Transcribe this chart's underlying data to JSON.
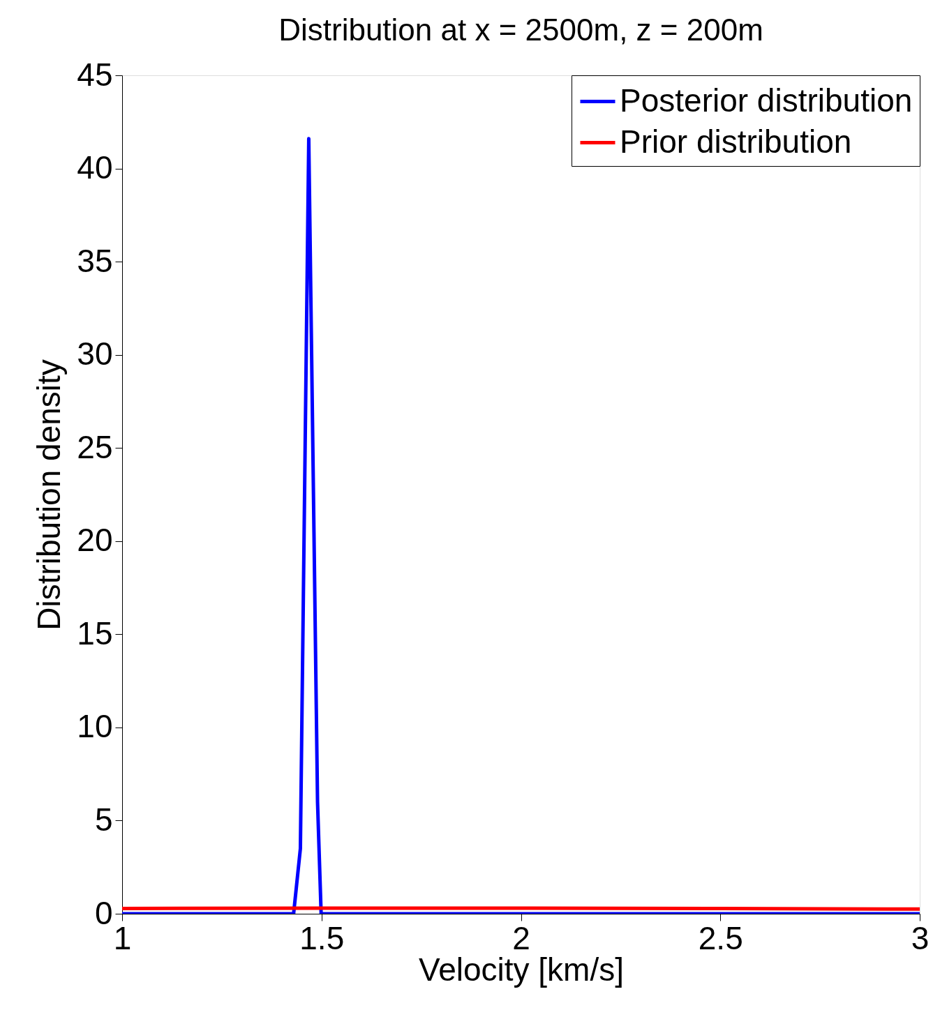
{
  "chart_data": {
    "type": "line",
    "title": "Distribution at x = 2500m, z = 200m",
    "xlabel": "Velocity [km/s]",
    "ylabel": "Distribution density",
    "xlim": [
      1,
      3
    ],
    "xticks": [
      1,
      1.5,
      2,
      2.5,
      3
    ],
    "ylim": [
      0,
      45
    ],
    "yticks": [
      0,
      5,
      10,
      15,
      20,
      25,
      30,
      35,
      40,
      45
    ],
    "grid": false,
    "legend": "top right",
    "marker": "none",
    "line_style": "solid",
    "series": [
      {
        "name": "Posterior distribution",
        "color": "#0000ff",
        "x": [
          1.0,
          1.43,
          1.447,
          1.468,
          1.49,
          1.499,
          1.51,
          3.0
        ],
        "values": [
          0,
          0,
          3.5,
          41.6,
          6.0,
          0,
          0,
          0
        ]
      },
      {
        "name": "Prior distribution",
        "color": "#ff0000",
        "x": [
          1.0,
          1.5,
          2.0,
          2.5,
          3.0
        ],
        "values": [
          0.28,
          0.3,
          0.3,
          0.28,
          0.25
        ]
      }
    ]
  }
}
